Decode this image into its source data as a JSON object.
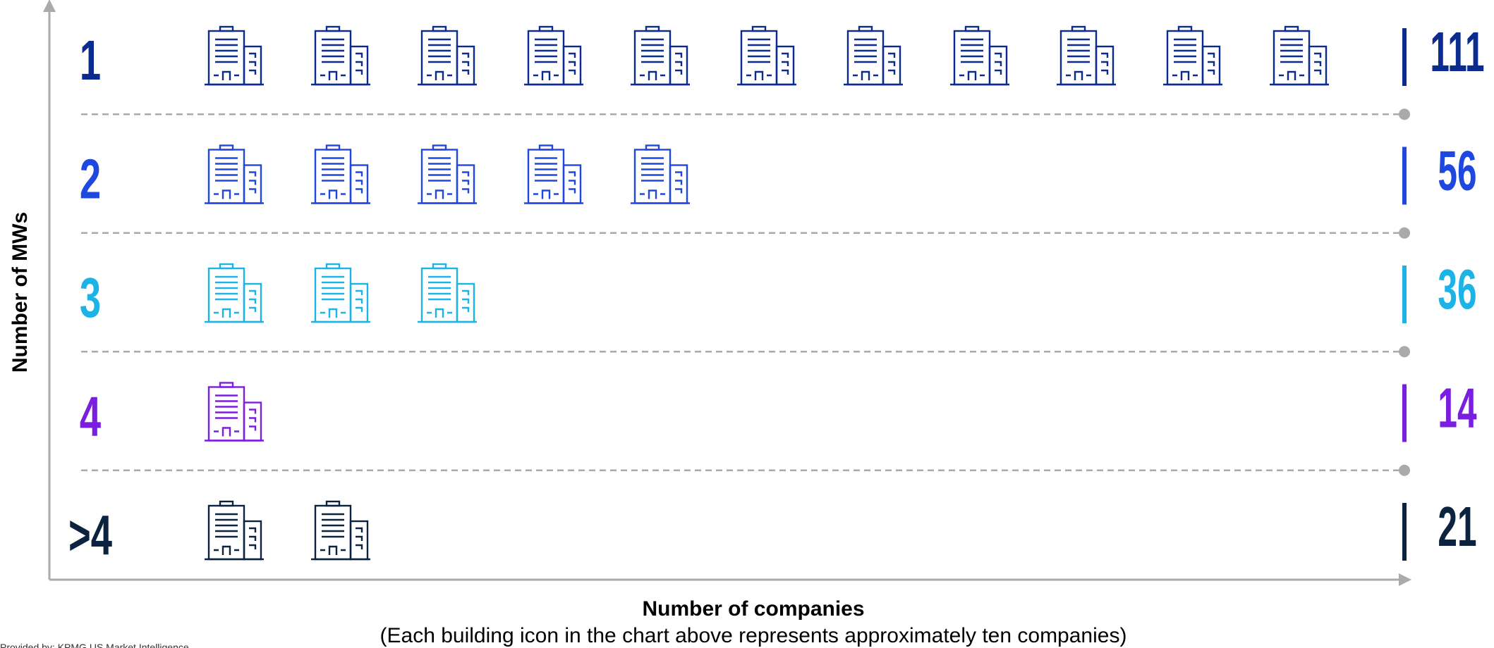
{
  "chart_data": {
    "type": "pictograph",
    "y_label": "Number of MWs",
    "x_label": "Number of companies",
    "subtitle": "(Each building icon in the chart above represents approximately ten companies)",
    "footnote": "Provided by: KPMG US Market Intelligence",
    "icon_unit": 10,
    "categories": [
      "1",
      "2",
      "3",
      "4",
      ">4"
    ],
    "values": [
      111,
      56,
      36,
      14,
      21
    ],
    "colors": [
      "#0b2c8e",
      "#1f48e0",
      "#1cb3e6",
      "#7a1ee0",
      "#0c2340"
    ]
  }
}
